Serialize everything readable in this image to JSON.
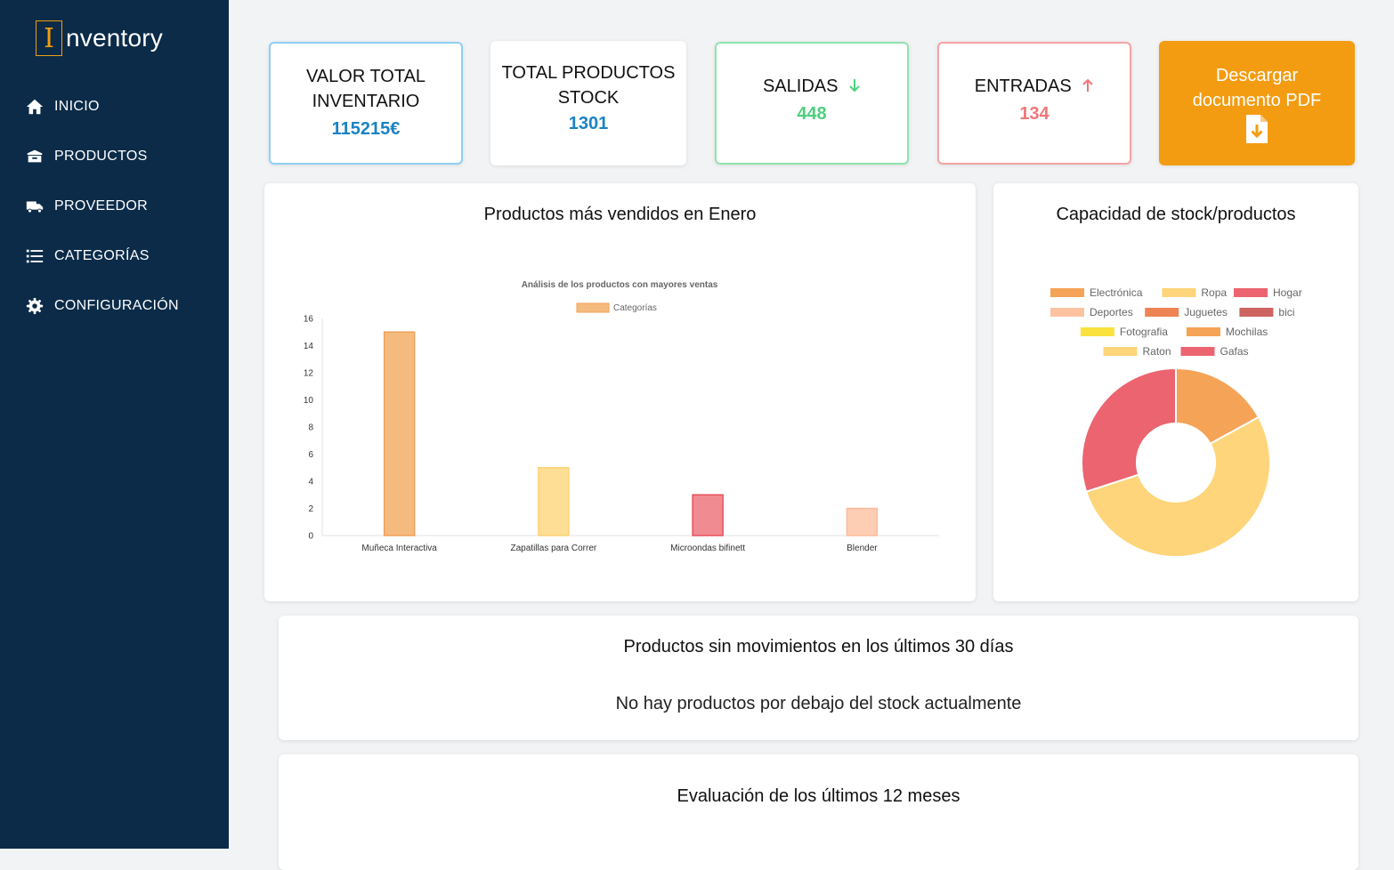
{
  "app": {
    "logo_letter": "I",
    "logo_text": "nventory"
  },
  "sidebar": {
    "items": [
      {
        "label": "INICIO",
        "icon": "home-icon"
      },
      {
        "label": "PRODUCTOS",
        "icon": "box-icon"
      },
      {
        "label": "PROVEEDOR",
        "icon": "truck-icon"
      },
      {
        "label": "CATEGORÍAS",
        "icon": "list-icon"
      },
      {
        "label": "CONFIGURACIÓN",
        "icon": "gear-icon"
      }
    ]
  },
  "stats": {
    "valor_total": {
      "title_line1": "VALOR TOTAL",
      "title_line2": "INVENTARIO",
      "value": "115215€"
    },
    "total_productos": {
      "title_line1": "TOTAL PRODUCTOS",
      "title_line2": "STOCK",
      "value": "1301"
    },
    "salidas": {
      "title": "SALIDAS",
      "value": "448",
      "icon": "arrow-down-icon"
    },
    "entradas": {
      "title": "ENTRADAS",
      "value": "134",
      "icon": "arrow-up-icon"
    },
    "pdf": {
      "title_line1": "Descargar",
      "title_line2": "documento PDF",
      "icon": "file-download-icon"
    }
  },
  "colors": {
    "sidebar_bg": "#0b2b48",
    "accent_orange": "#f39c12",
    "blue": "#1a82c4",
    "green": "#4cd07d",
    "red": "#f07677"
  },
  "panels": {
    "bar_title": "Productos más vendidos en Enero",
    "donut_title": "Capacidad de stock/productos",
    "no_movement_title": "Productos sin movimientos en los últimos 30 días",
    "no_movement_msg": "No hay productos por debajo del stock actualmente",
    "eval_title": "Evaluación de los últimos 12 meses"
  },
  "chart_data": [
    {
      "type": "bar",
      "title": "Análisis de los productos con mayores ventas",
      "categories": [
        "Muñeca Interactiva",
        "Zapatillas para Correr",
        "Microondas bifinett",
        "Blender"
      ],
      "series": [
        {
          "name": "Categorías",
          "values": [
            15,
            5,
            3,
            2
          ]
        }
      ],
      "colors": [
        "#f5bb7e",
        "#fedd95",
        "#f08b92",
        "#fdcdb4"
      ],
      "borders": [
        "#f0a05a",
        "#fdd276",
        "#e8505c",
        "#fbbc9c"
      ],
      "ylim": [
        0,
        16
      ],
      "yticks": [
        "0",
        "2",
        "4",
        "6",
        "8",
        "10",
        "12",
        "14",
        "16"
      ],
      "grid": false,
      "legend": "top"
    },
    {
      "type": "pie",
      "title": "",
      "labels": [
        "Electrónica",
        "Ropa",
        "Hogar",
        "Deportes",
        "Juguetes",
        "bici",
        "Fotografia",
        "Mochilas",
        "Raton",
        "Gafas"
      ],
      "values": [
        17,
        53,
        30,
        0,
        0,
        0,
        0,
        0,
        0,
        0
      ],
      "colors": [
        "#f5a356",
        "#fed57a",
        "#eb6470",
        "#fdc3a1",
        "#ee8454",
        "#cd6460",
        "#fbe13d",
        "#f5a356",
        "#fed57a",
        "#eb6470"
      ],
      "legend": "top"
    }
  ]
}
